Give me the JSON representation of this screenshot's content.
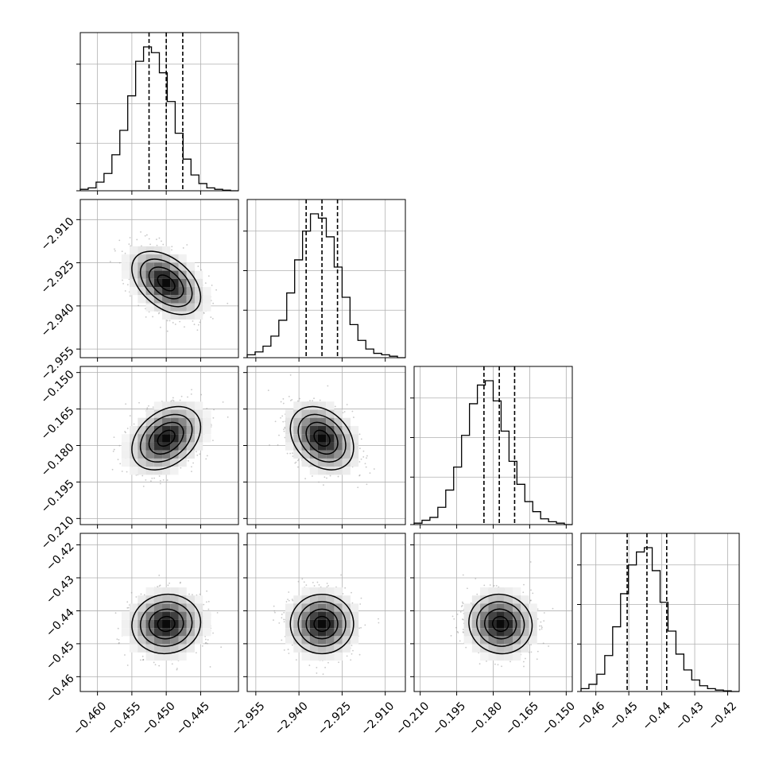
{
  "chart_data": {
    "type": "corner",
    "grid": true,
    "colors": {
      "line": "#000000",
      "grid": "#b0b0b0",
      "scatter": "#9a9a9a",
      "background": "#ffffff"
    },
    "parameters": [
      {
        "range": [
          -0.4625,
          -0.4395
        ],
        "ticks": [
          -0.46,
          -0.455,
          -0.45,
          -0.445
        ],
        "tick_labels": [
          "−0.460",
          "−0.455",
          "−0.450",
          "−0.445"
        ],
        "mean": -0.45,
        "sd": 0.0025,
        "quantiles": [
          -0.4525,
          -0.45,
          -0.4476
        ]
      },
      {
        "range": [
          -2.958,
          -2.903
        ],
        "ticks": [
          -2.955,
          -2.94,
          -2.925,
          -2.91
        ],
        "tick_labels": [
          "−2.955",
          "−2.940",
          "−2.925",
          "−2.910"
        ],
        "mean": -2.932,
        "sd": 0.0055,
        "quantiles": [
          -2.9375,
          -2.932,
          -2.9266
        ]
      },
      {
        "range": [
          -0.2125,
          -0.1475
        ],
        "ticks": [
          -0.21,
          -0.195,
          -0.18,
          -0.165,
          -0.15
        ],
        "tick_labels": [
          "−0.210",
          "−0.195",
          "−0.180",
          "−0.165",
          "−0.150"
        ],
        "mean": -0.177,
        "sd": 0.0065,
        "quantiles": [
          -0.1838,
          -0.1775,
          -0.1712
        ]
      },
      {
        "range": [
          -0.4645,
          -0.4165
        ],
        "ticks": [
          -0.46,
          -0.45,
          -0.44,
          -0.43,
          -0.42
        ],
        "tick_labels": [
          "−0.46",
          "−0.45",
          "−0.44",
          "−0.43",
          "−0.42"
        ],
        "mean": -0.444,
        "sd": 0.0045,
        "quantiles": [
          -0.4505,
          -0.4445,
          -0.4385
        ]
      }
    ],
    "correlations": [
      [
        1.0,
        -0.45,
        0.35,
        0.05
      ],
      [
        -0.45,
        1.0,
        -0.3,
        0.0
      ],
      [
        0.35,
        -0.3,
        1.0,
        -0.05
      ],
      [
        0.05,
        0.0,
        -0.05,
        1.0
      ]
    ],
    "histograms": [
      {
        "bin_edges": [
          -0.4625,
          -0.46135,
          -0.4602,
          -0.45905,
          -0.4579,
          -0.45675,
          -0.4556,
          -0.45445,
          -0.4533,
          -0.45215,
          -0.451,
          -0.44985,
          -0.4487,
          -0.44755,
          -0.4464,
          -0.44525,
          -0.4441,
          -0.44295,
          -0.4418,
          -0.44065,
          -0.4395
        ],
        "relative_heights": [
          0.01,
          0.02,
          0.06,
          0.12,
          0.25,
          0.42,
          0.66,
          0.9,
          1.0,
          0.96,
          0.82,
          0.62,
          0.4,
          0.22,
          0.11,
          0.05,
          0.02,
          0.01,
          0.004,
          0.0
        ]
      },
      {
        "bin_edges": [
          -2.958,
          -2.95525,
          -2.9525,
          -2.94975,
          -2.947,
          -2.94425,
          -2.9415,
          -2.93875,
          -2.936,
          -2.93325,
          -2.9305,
          -2.92775,
          -2.925,
          -2.92225,
          -2.9195,
          -2.91675,
          -2.914,
          -2.91125,
          -2.9085,
          -2.90575,
          -2.903
        ],
        "relative_heights": [
          0.02,
          0.04,
          0.08,
          0.15,
          0.26,
          0.45,
          0.68,
          0.88,
          1.0,
          0.97,
          0.84,
          0.63,
          0.42,
          0.23,
          0.12,
          0.06,
          0.03,
          0.02,
          0.01,
          0.0
        ]
      },
      {
        "bin_edges": [
          -0.2125,
          -0.20925,
          -0.206,
          -0.20275,
          -0.1995,
          -0.19625,
          -0.193,
          -0.18975,
          -0.1865,
          -0.18325,
          -0.18,
          -0.17675,
          -0.1735,
          -0.17025,
          -0.167,
          -0.16375,
          -0.1605,
          -0.15725,
          -0.154,
          -0.15075,
          -0.1475
        ],
        "relative_heights": [
          0.01,
          0.03,
          0.05,
          0.12,
          0.24,
          0.4,
          0.62,
          0.84,
          0.97,
          1.0,
          0.86,
          0.65,
          0.44,
          0.28,
          0.16,
          0.09,
          0.04,
          0.02,
          0.01,
          0.0
        ]
      },
      {
        "bin_edges": [
          -0.4645,
          -0.4621,
          -0.4597,
          -0.4573,
          -0.4549,
          -0.4525,
          -0.4501,
          -0.4477,
          -0.4453,
          -0.4429,
          -0.4405,
          -0.4381,
          -0.4357,
          -0.4333,
          -0.4309,
          -0.4285,
          -0.4261,
          -0.4237,
          -0.4213,
          -0.4189,
          -0.4165
        ],
        "relative_heights": [
          0.02,
          0.05,
          0.12,
          0.25,
          0.45,
          0.68,
          0.88,
          0.97,
          1.0,
          0.84,
          0.62,
          0.42,
          0.26,
          0.15,
          0.08,
          0.04,
          0.02,
          0.01,
          0.005,
          0.0
        ]
      }
    ]
  }
}
